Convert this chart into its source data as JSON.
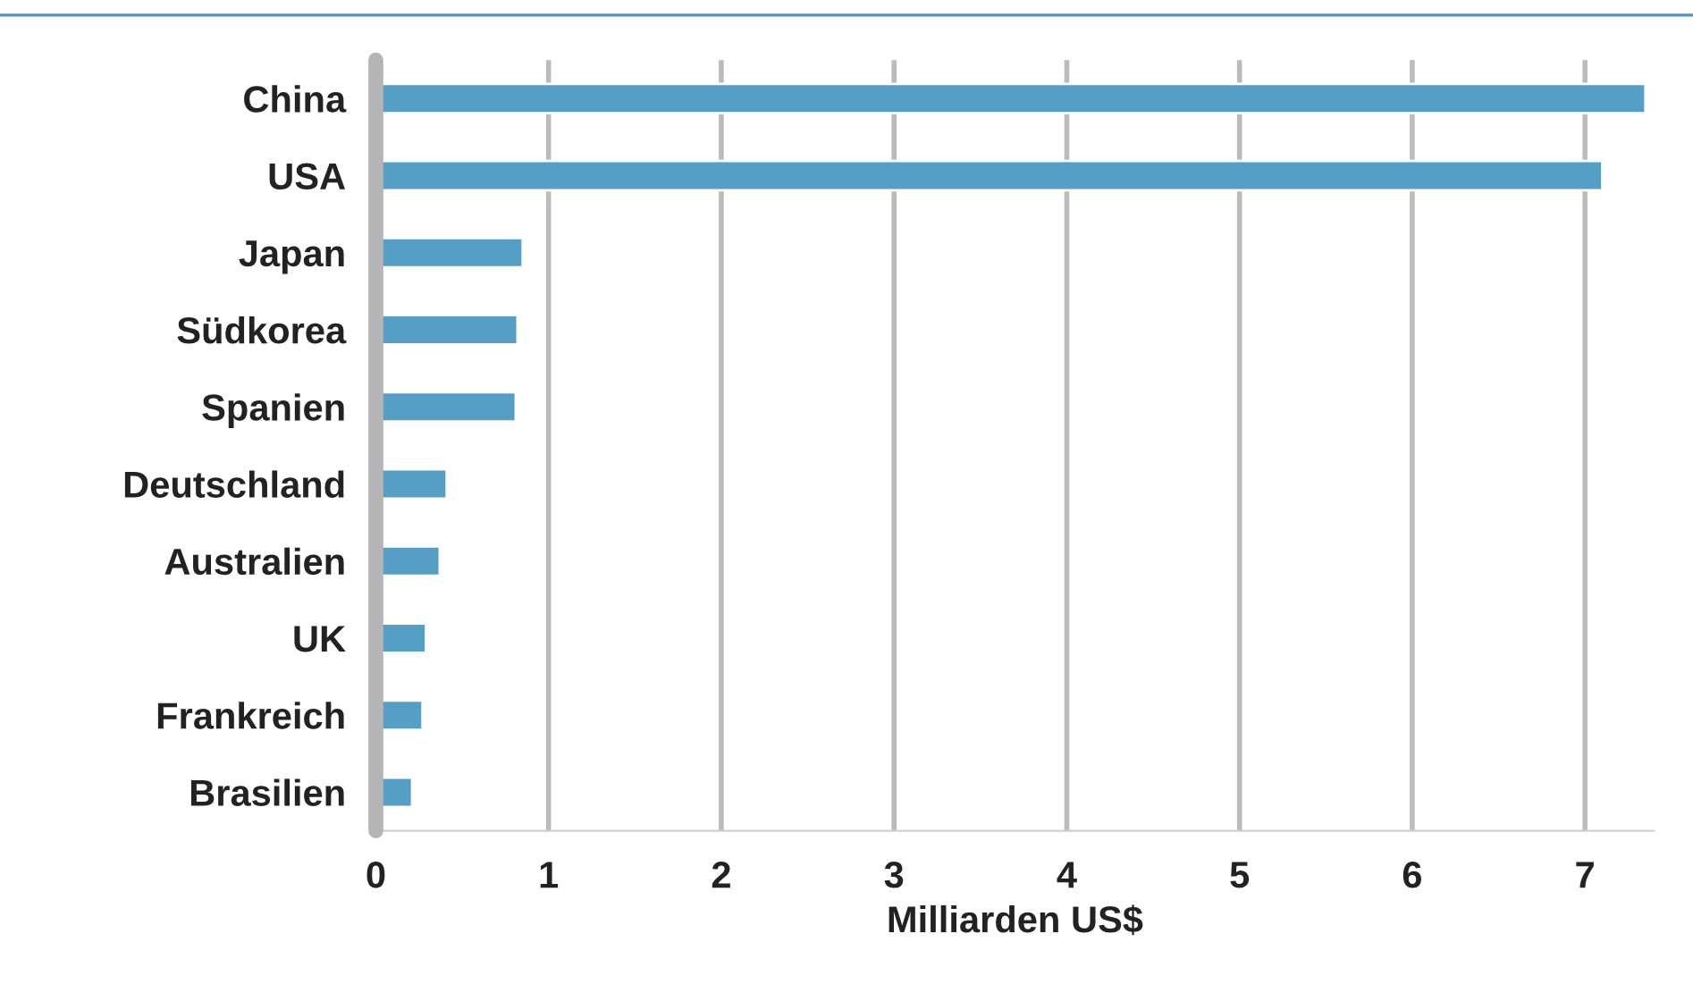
{
  "chart_data": {
    "type": "bar",
    "orientation": "horizontal",
    "xlabel": "Milliarden US$",
    "categories": [
      "China",
      "USA",
      "Japan",
      "Südkorea",
      "Spanien",
      "Deutschland",
      "Australien",
      "UK",
      "Frankreich",
      "Brasilien"
    ],
    "values": [
      7.35,
      7.1,
      0.85,
      0.82,
      0.81,
      0.41,
      0.37,
      0.29,
      0.27,
      0.21
    ],
    "color": "#559fc7",
    "xlim": [
      0,
      7.4
    ],
    "xticks": [
      0,
      1,
      2,
      3,
      4,
      5,
      6,
      7
    ],
    "grid": "x"
  }
}
